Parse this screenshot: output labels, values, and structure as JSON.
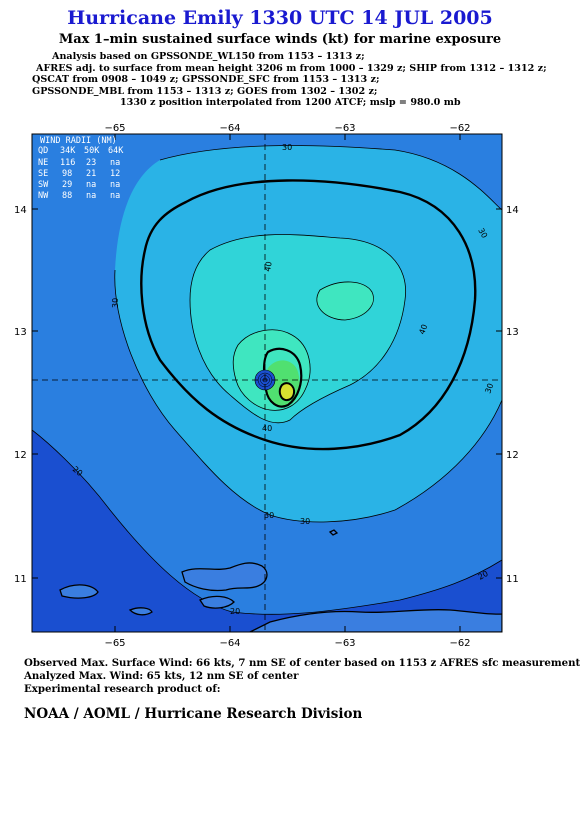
{
  "title": "Hurricane Emily 1330 UTC 14 JUL 2005",
  "subtitle": "Max 1–min sustained surface winds (kt) for marine exposure",
  "analysis_lines": [
    "Analysis based on  GPSSONDE_WL150 from 1153 – 1313 z;",
    "AFRES adj. to surface from mean height 3206 m from 1000 – 1329 z;  SHIP from 1312 – 1312 z;",
    "QSCAT from 0908 – 1049 z;  GPSSONDE_SFC from 1153 – 1313 z;",
    "GPSSONDE_MBL from 1153 – 1313 z;  GOES from 1302 – 1302 z;"
  ],
  "position_note": "1330 z position interpolated from 1200 ATCF; mslp = 980.0 mb",
  "map": {
    "lon_ticks": [
      "−65",
      "−64",
      "−63",
      "−62"
    ],
    "lat_ticks": [
      "14",
      "13",
      "12",
      "11"
    ],
    "contour_labels": [
      "30",
      "30",
      "40",
      "30",
      "40",
      "40",
      "30",
      "30",
      "20",
      "20",
      "30",
      "20"
    ],
    "colors": {
      "level_lt20": "#1a4fd0",
      "level_20_30": "#2a7fe0",
      "level_30_40": "#2ab3e6",
      "level_40_50": "#30d4d8",
      "level_50_60": "#3fe6c0",
      "level_60_64": "#50e070",
      "level_64plus": "#d8e030",
      "land": "#3a7ee0"
    },
    "wind_radii": {
      "header": "WIND RADII (NM)",
      "columns": [
        "QD",
        "34K",
        "50K",
        "64K"
      ],
      "rows": [
        [
          "NE",
          "116",
          "23",
          "na"
        ],
        [
          "SE",
          "98",
          "21",
          "12"
        ],
        [
          "SW",
          "29",
          "na",
          "na"
        ],
        [
          "NW",
          "88",
          "na",
          "na"
        ]
      ]
    }
  },
  "footer": {
    "observed": "Observed Max. Surface Wind: 66 kts, 7 nm SE of center based on 1153 z AFRES sfc measurement",
    "analyzed": "Analyzed Max. Wind: 65 kts, 12 nm SE of center",
    "experimental": "Experimental research product of:"
  },
  "organization": "NOAA / AOML / Hurricane Research Division"
}
